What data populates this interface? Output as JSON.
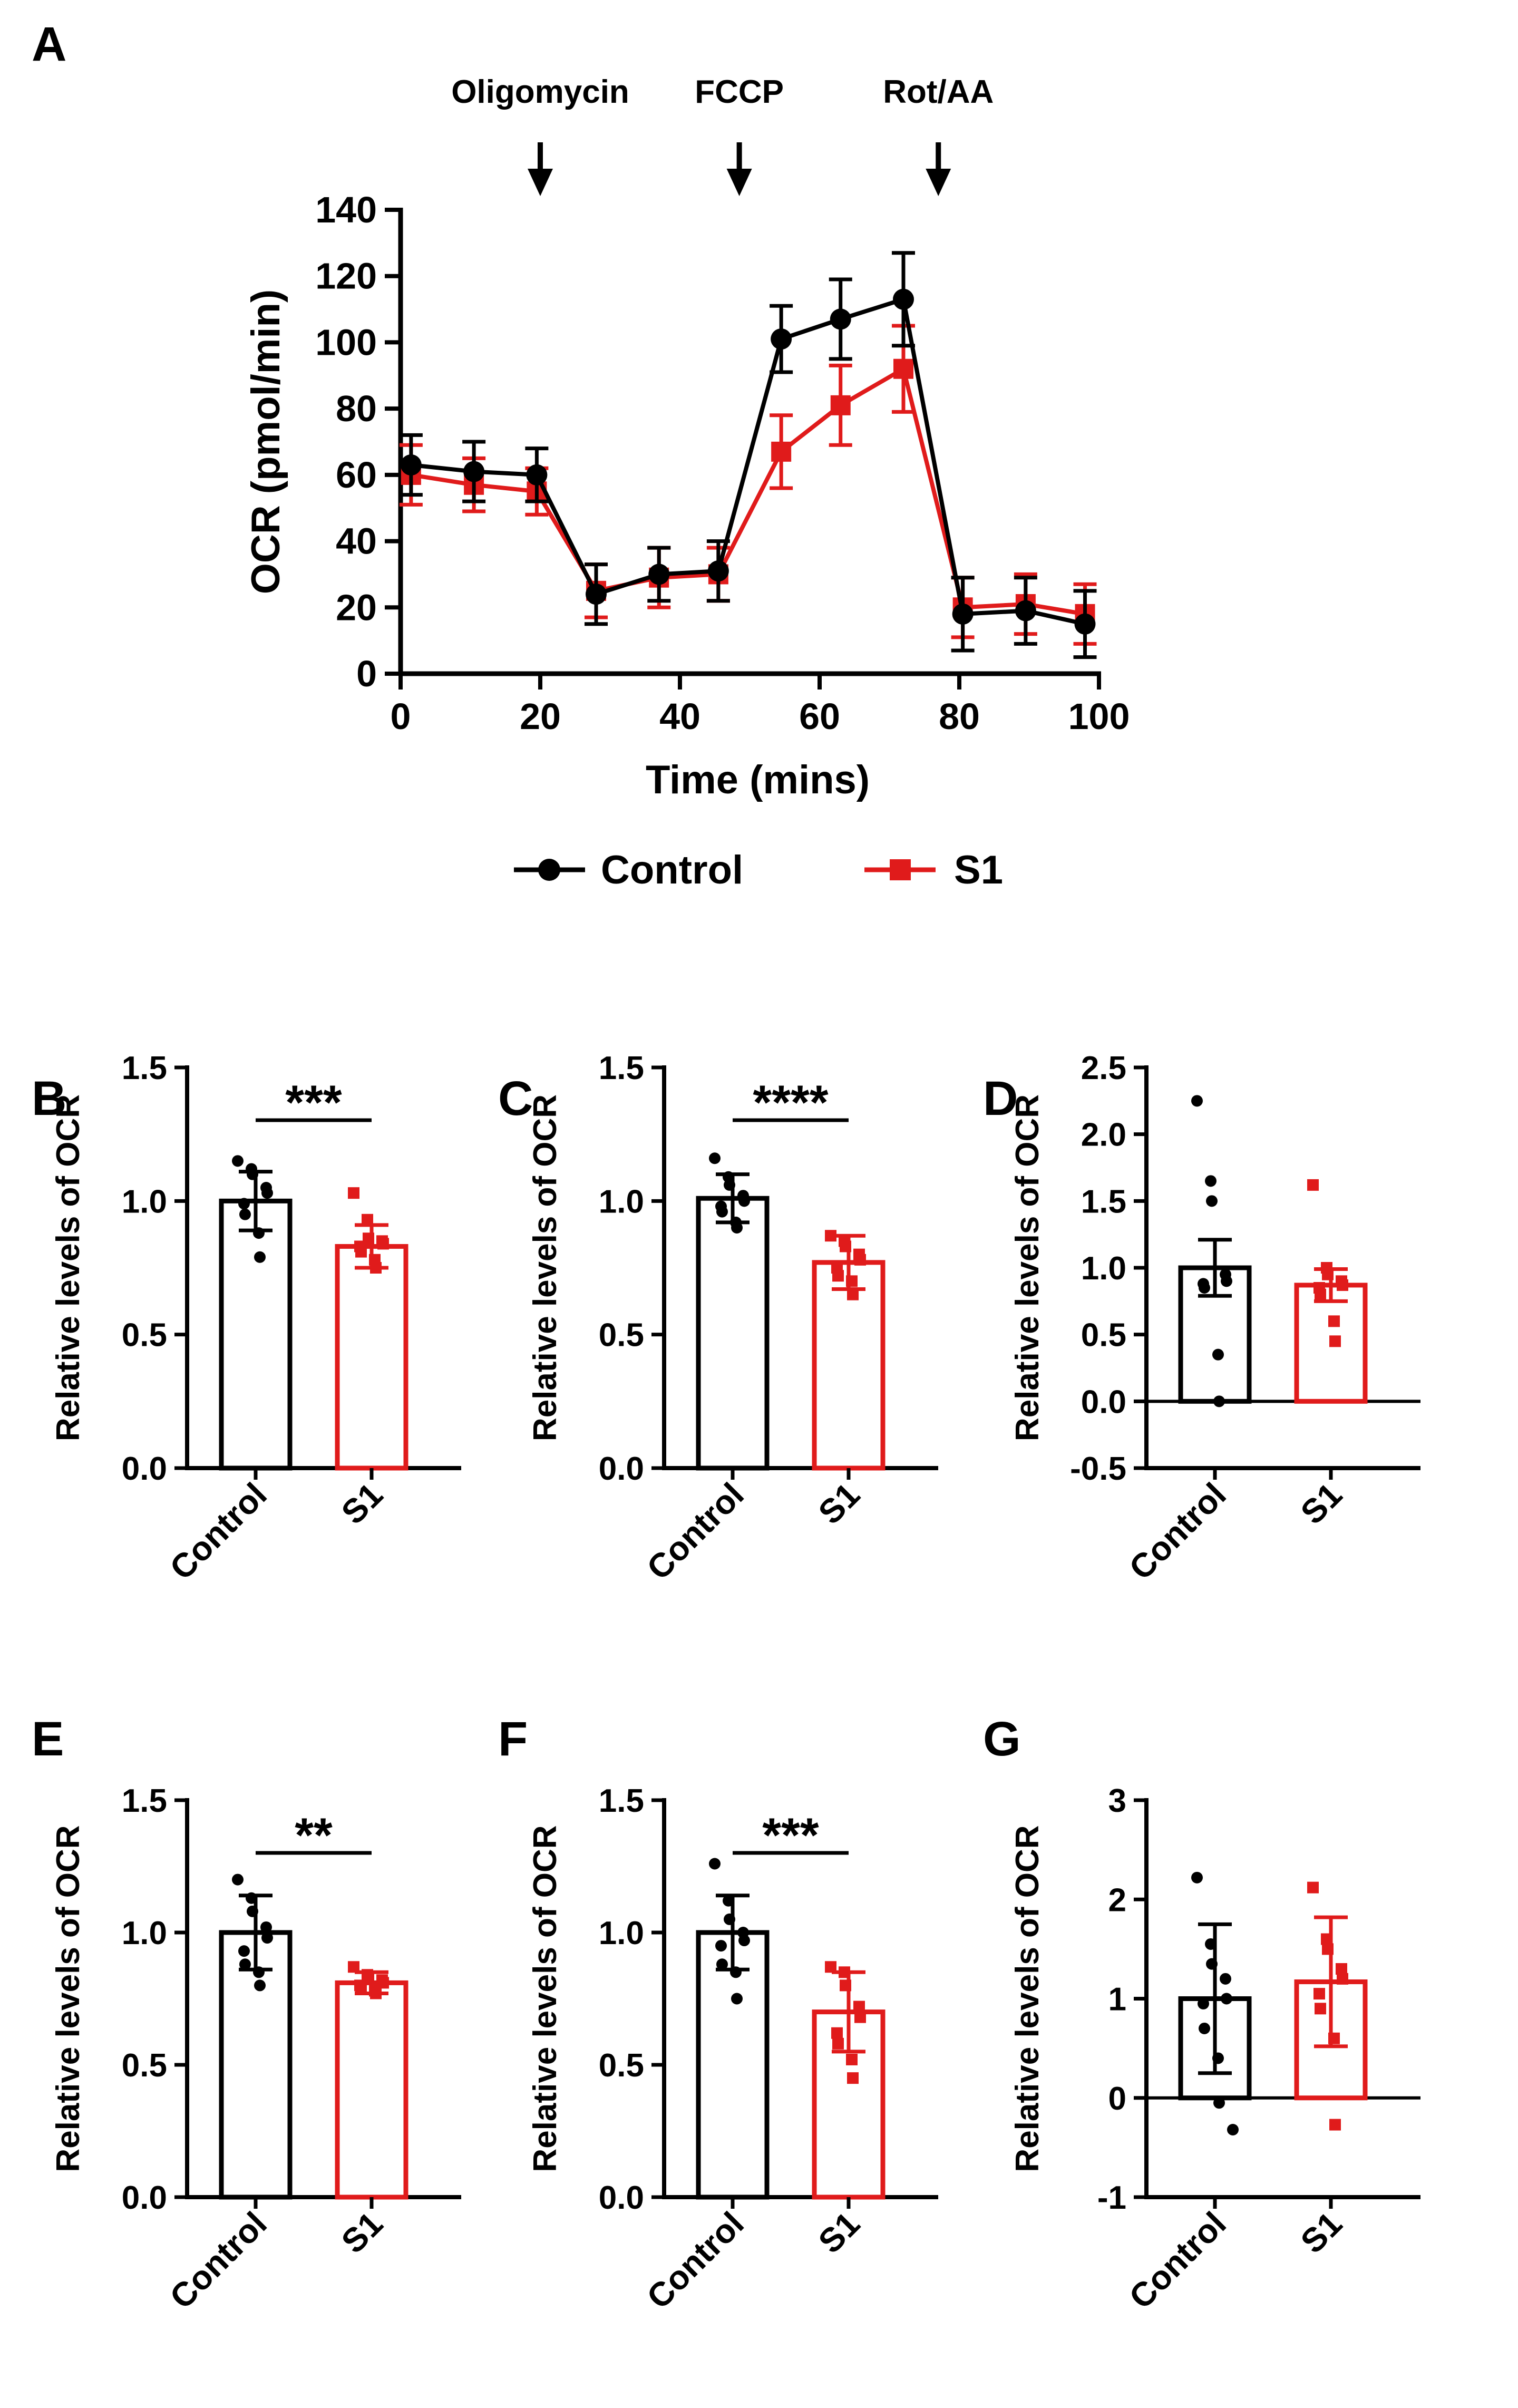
{
  "colors": {
    "control": "#000000",
    "s1": "#e01b1b"
  },
  "chart_data": [
    {
      "panel": "A",
      "type": "line",
      "title": "",
      "xlabel": "Time (mins)",
      "ylabel": "OCR (pmol/min)",
      "xlim": [
        0,
        100
      ],
      "ylim": [
        0,
        140
      ],
      "xticks": [
        0,
        20,
        40,
        60,
        80,
        100
      ],
      "yticks": [
        0,
        20,
        40,
        60,
        80,
        100,
        120,
        140
      ],
      "x": [
        1.5,
        10.5,
        19.5,
        28,
        37,
        45.5,
        54.5,
        63,
        72,
        80.5,
        89.5,
        98
      ],
      "series": [
        {
          "name": "Control",
          "color": "#000000",
          "marker": "circle",
          "values": [
            63,
            61,
            60,
            24,
            30,
            31,
            101,
            107,
            113,
            18,
            19,
            15
          ],
          "errors": [
            9,
            9,
            8,
            9,
            8,
            9,
            10,
            12,
            14,
            11,
            10,
            10
          ]
        },
        {
          "name": "S1",
          "color": "#e01b1b",
          "marker": "square",
          "values": [
            60,
            57,
            55,
            25,
            29,
            30,
            67,
            81,
            92,
            20,
            21,
            18
          ],
          "errors": [
            9,
            8,
            7,
            8,
            9,
            8,
            11,
            12,
            13,
            9,
            9,
            9
          ]
        }
      ],
      "annotations": [
        {
          "label": "Oligomycin",
          "x": 20
        },
        {
          "label": "FCCP",
          "x": 48.5
        },
        {
          "label": "Rot/AA",
          "x": 77
        }
      ],
      "legend": [
        "Control",
        "S1"
      ]
    },
    {
      "panel": "B",
      "type": "bar",
      "ylabel": "Relative levels of OCR",
      "categories": [
        "Control",
        "S1"
      ],
      "ylim": [
        0,
        1.5
      ],
      "yticks": [
        "0.0",
        "0.5",
        "1.0",
        "1.5"
      ],
      "values": [
        1.0,
        0.83
      ],
      "errors": [
        0.11,
        0.08
      ],
      "significance": "***",
      "points": [
        [
          1.15,
          1.12,
          1.1,
          1.05,
          1.03,
          0.99,
          0.95,
          0.88,
          0.79
        ],
        [
          1.03,
          0.93,
          0.86,
          0.85,
          0.84,
          0.83,
          0.81,
          0.78,
          0.75
        ]
      ]
    },
    {
      "panel": "C",
      "type": "bar",
      "ylabel": "Relative levels of OCR",
      "categories": [
        "Control",
        "S1"
      ],
      "ylim": [
        0,
        1.5
      ],
      "yticks": [
        "0.0",
        "0.5",
        "1.0",
        "1.5"
      ],
      "values": [
        1.01,
        0.77
      ],
      "errors": [
        0.09,
        0.1
      ],
      "significance": "****",
      "points": [
        [
          1.16,
          1.09,
          1.06,
          1.02,
          1.0,
          0.98,
          0.96,
          0.92,
          0.9
        ],
        [
          0.87,
          0.85,
          0.83,
          0.8,
          0.78,
          0.75,
          0.72,
          0.7,
          0.65
        ]
      ]
    },
    {
      "panel": "D",
      "type": "bar",
      "ylabel": "Relative levels of OCR",
      "categories": [
        "Control",
        "S1"
      ],
      "ylim": [
        -0.5,
        2.5
      ],
      "yticks": [
        "-0.5",
        "0.0",
        "0.5",
        "1.0",
        "1.5",
        "2.0",
        "2.5"
      ],
      "values": [
        1.0,
        0.87
      ],
      "errors": [
        0.21,
        0.12
      ],
      "significance": "",
      "points": [
        [
          2.25,
          1.65,
          1.5,
          0.95,
          0.9,
          0.88,
          0.85,
          0.35,
          0.0
        ],
        [
          1.62,
          1.0,
          0.95,
          0.9,
          0.87,
          0.85,
          0.8,
          0.6,
          0.45
        ]
      ]
    },
    {
      "panel": "E",
      "type": "bar",
      "ylabel": "Relative levels of OCR",
      "categories": [
        "Control",
        "S1"
      ],
      "ylim": [
        0,
        1.5
      ],
      "yticks": [
        "0.0",
        "0.5",
        "1.0",
        "1.5"
      ],
      "values": [
        1.0,
        0.81
      ],
      "errors": [
        0.14,
        0.04
      ],
      "significance": "**",
      "points": [
        [
          1.2,
          1.13,
          1.08,
          1.02,
          0.98,
          0.93,
          0.88,
          0.85,
          0.8
        ],
        [
          0.87,
          0.84,
          0.83,
          0.82,
          0.81,
          0.8,
          0.79,
          0.78,
          0.77
        ]
      ]
    },
    {
      "panel": "F",
      "type": "bar",
      "ylabel": "Relative levels of OCR",
      "categories": [
        "Control",
        "S1"
      ],
      "ylim": [
        0,
        1.5
      ],
      "yticks": [
        "0.0",
        "0.5",
        "1.0",
        "1.5"
      ],
      "values": [
        1.0,
        0.7
      ],
      "errors": [
        0.14,
        0.15
      ],
      "significance": "***",
      "points": [
        [
          1.26,
          1.12,
          1.05,
          1.0,
          0.97,
          0.95,
          0.88,
          0.85,
          0.75
        ],
        [
          0.87,
          0.85,
          0.8,
          0.72,
          0.68,
          0.62,
          0.58,
          0.52,
          0.45
        ]
      ]
    },
    {
      "panel": "G",
      "type": "bar",
      "ylabel": "Relative levels of OCR",
      "categories": [
        "Control",
        "S1"
      ],
      "ylim": [
        -1,
        3
      ],
      "yticks": [
        "-1",
        "0",
        "1",
        "2",
        "3"
      ],
      "values": [
        1.0,
        1.17
      ],
      "errors": [
        0.75,
        0.65
      ],
      "significance": "",
      "points": [
        [
          2.22,
          1.55,
          1.35,
          1.2,
          1.0,
          0.95,
          0.7,
          0.4,
          -0.05,
          -0.32
        ],
        [
          2.12,
          1.6,
          1.5,
          1.3,
          1.2,
          1.05,
          0.9,
          0.6,
          -0.27
        ]
      ]
    }
  ]
}
